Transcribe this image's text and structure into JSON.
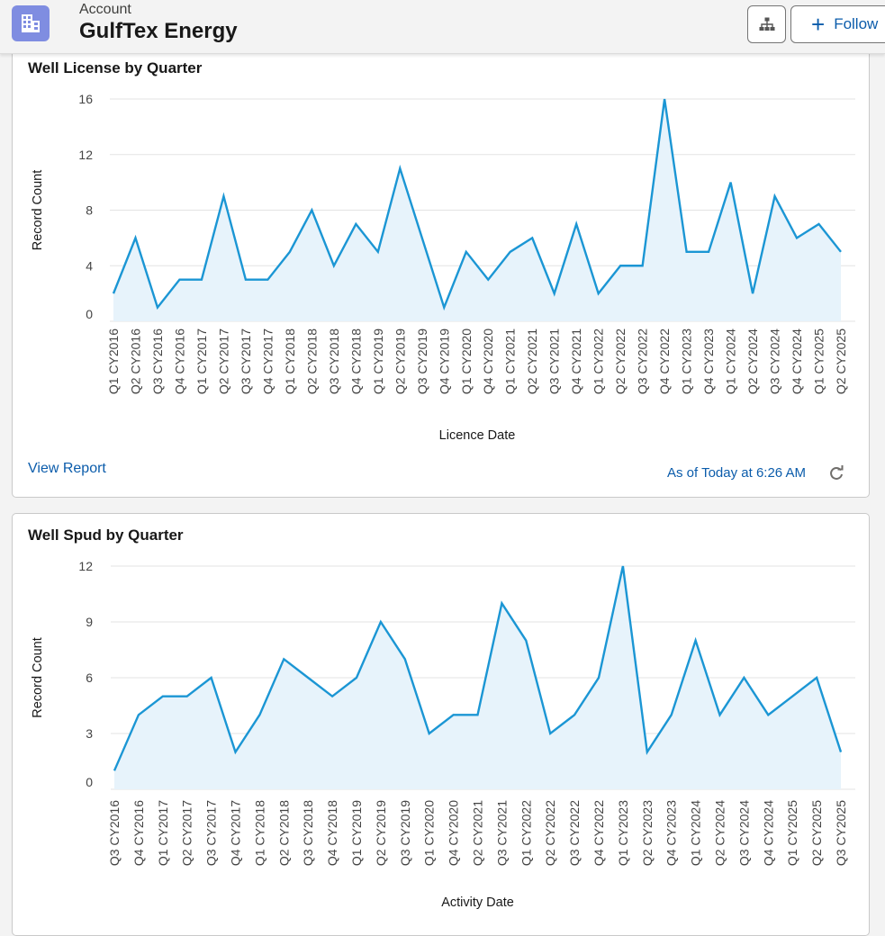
{
  "header": {
    "object_type": "Account",
    "record_name": "GulfTex Energy",
    "follow_label": "Follow",
    "icons": {
      "record": "account-building-icon",
      "hierarchy": "hierarchy-icon",
      "add": "plus-icon"
    },
    "accent_color": "#7f8de1",
    "link_color": "#0b5cab"
  },
  "cards": [
    {
      "title": "Well License by Quarter",
      "view_report": "View Report",
      "as_of": "As of Today at 6:26 AM",
      "refresh_icon": "refresh-icon"
    },
    {
      "title": "Well Spud by Quarter"
    }
  ],
  "chart_data": [
    {
      "type": "area",
      "title": "Well License by Quarter",
      "xlabel": "Licence Date",
      "ylabel": "Record Count",
      "ylim": [
        0,
        16
      ],
      "yticks": [
        0,
        4,
        8,
        12,
        16
      ],
      "grid": true,
      "line_color": "#1b96d4",
      "fill_color": "#e7f3fb",
      "categories": [
        "Q1 CY2016",
        "Q2 CY2016",
        "Q3 CY2016",
        "Q4 CY2016",
        "Q1 CY2017",
        "Q2 CY2017",
        "Q3 CY2017",
        "Q4 CY2017",
        "Q1 CY2018",
        "Q2 CY2018",
        "Q3 CY2018",
        "Q4 CY2018",
        "Q1 CY2019",
        "Q2 CY2019",
        "Q3 CY2019",
        "Q4 CY2019",
        "Q1 CY2020",
        "Q4 CY2020",
        "Q1 CY2021",
        "Q2 CY2021",
        "Q3 CY2021",
        "Q4 CY2021",
        "Q1 CY2022",
        "Q2 CY2022",
        "Q3 CY2022",
        "Q4 CY2022",
        "Q1 CY2023",
        "Q4 CY2023",
        "Q1 CY2024",
        "Q2 CY2024",
        "Q3 CY2024",
        "Q4 CY2024",
        "Q1 CY2025",
        "Q2 CY2025"
      ],
      "values": [
        2,
        6,
        1,
        3,
        3,
        9,
        3,
        3,
        5,
        8,
        4,
        7,
        5,
        11,
        6,
        1,
        5,
        3,
        5,
        6,
        2,
        7,
        2,
        4,
        4,
        16,
        5,
        5,
        10,
        2,
        9,
        6,
        7,
        5
      ]
    },
    {
      "type": "area",
      "title": "Well Spud by Quarter",
      "xlabel": "Activity Date",
      "ylabel": "Record Count",
      "ylim": [
        0,
        12
      ],
      "yticks": [
        0,
        3,
        6,
        9,
        12
      ],
      "grid": true,
      "line_color": "#1b96d4",
      "fill_color": "#e7f3fb",
      "categories": [
        "Q3 CY2016",
        "Q4 CY2016",
        "Q1 CY2017",
        "Q2 CY2017",
        "Q3 CY2017",
        "Q4 CY2017",
        "Q1 CY2018",
        "Q2 CY2018",
        "Q3 CY2018",
        "Q4 CY2018",
        "Q1 CY2019",
        "Q2 CY2019",
        "Q3 CY2019",
        "Q1 CY2020",
        "Q4 CY2020",
        "Q2 CY2021",
        "Q3 CY2021",
        "Q1 CY2022",
        "Q2 CY2022",
        "Q3 CY2022",
        "Q4 CY2022",
        "Q1 CY2023",
        "Q2 CY2023",
        "Q4 CY2023",
        "Q1 CY2024",
        "Q2 CY2024",
        "Q3 CY2024",
        "Q4 CY2024",
        "Q1 CY2025",
        "Q2 CY2025",
        "Q3 CY2025"
      ],
      "values": [
        1,
        4,
        5,
        5,
        6,
        2,
        4,
        7,
        6,
        5,
        6,
        9,
        7,
        3,
        4,
        4,
        10,
        8,
        3,
        4,
        6,
        12,
        2,
        4,
        8,
        4,
        6,
        4,
        5,
        6,
        2
      ]
    }
  ]
}
